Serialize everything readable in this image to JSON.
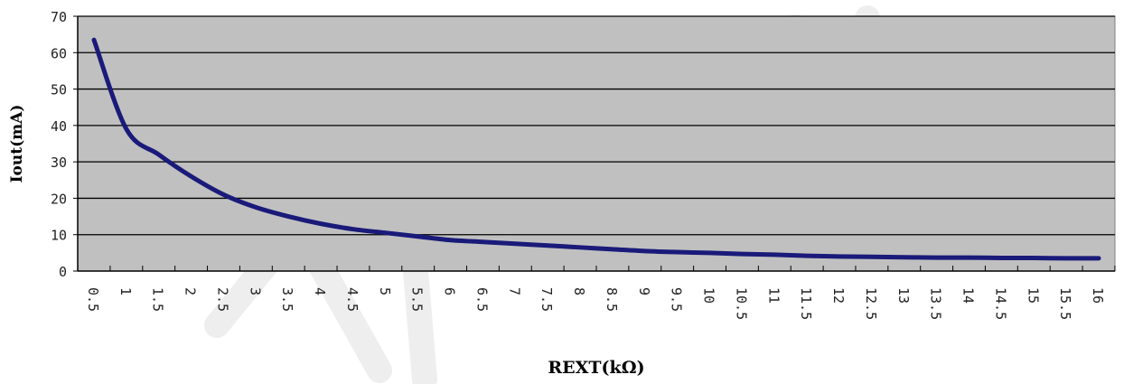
{
  "chart_data": {
    "type": "line",
    "title": "",
    "xlabel": "REXT(kΩ)",
    "ylabel": "Iout(mA)",
    "ylim": [
      0,
      70
    ],
    "yticks": [
      "0",
      "10",
      "20",
      "30",
      "40",
      "50",
      "60",
      "70"
    ],
    "categories": [
      "0.5",
      "1",
      "1.5",
      "2",
      "2.5",
      "3",
      "3.5",
      "4",
      "4.5",
      "5",
      "5.5",
      "6",
      "6.5",
      "7",
      "7.5",
      "8",
      "8.5",
      "9",
      "9.5",
      "10",
      "10.5",
      "11",
      "11.5",
      "12",
      "12.5",
      "13",
      "13.5",
      "14",
      "14.5",
      "15",
      "15.5",
      "16"
    ],
    "series": [
      {
        "values": [
          63.5,
          39,
          32,
          26,
          21,
          17.5,
          15,
          13,
          11.5,
          10.5,
          9.5,
          8.5,
          8,
          7.5,
          7,
          6.5,
          6,
          5.5,
          5.2,
          5,
          4.7,
          4.5,
          4.2,
          4,
          3.9,
          3.8,
          3.7,
          3.7,
          3.6,
          3.6,
          3.5,
          3.5
        ],
        "color": "#1a1a7a"
      }
    ],
    "grid": true,
    "plot_background": "#c0c0c0",
    "gridline_color": "#000000"
  }
}
